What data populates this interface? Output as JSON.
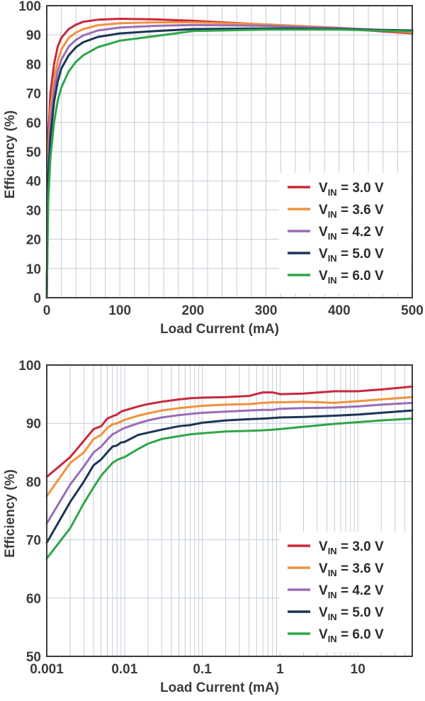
{
  "chart_data": [
    {
      "type": "line",
      "xlabel": "Load Current (mA)",
      "ylabel": "Efficiency (%)",
      "xscale": "linear",
      "xlim": [
        0,
        500
      ],
      "ylim": [
        0,
        100
      ],
      "xticks": [
        0,
        100,
        200,
        300,
        400,
        500
      ],
      "yticks": [
        0,
        10,
        20,
        30,
        40,
        50,
        60,
        70,
        80,
        90,
        100
      ],
      "grid": true,
      "legend": "bottom-right",
      "series": [
        {
          "name": "VIN = 3.0 V",
          "color": "#c8283c",
          "x": [
            0,
            2,
            5,
            10,
            15,
            20,
            30,
            40,
            50,
            70,
            100,
            150,
            200,
            300,
            400,
            500
          ],
          "y": [
            0,
            55,
            70,
            80,
            86,
            89,
            92,
            93.5,
            94.5,
            95.2,
            95.5,
            95.3,
            94.8,
            93.5,
            92.2,
            90.5
          ]
        },
        {
          "name": "VIN = 3.6 V",
          "color": "#f0923b",
          "x": [
            0,
            2,
            5,
            10,
            15,
            20,
            30,
            40,
            50,
            70,
            100,
            150,
            200,
            300,
            400,
            500
          ],
          "y": [
            0,
            50,
            64,
            75,
            81,
            85,
            89,
            90.8,
            92,
            93.3,
            94,
            94.3,
            94.3,
            93.6,
            92.4,
            90.8
          ]
        },
        {
          "name": "VIN = 4.2 V",
          "color": "#9a6cb5",
          "x": [
            0,
            2,
            5,
            10,
            15,
            20,
            30,
            40,
            50,
            70,
            100,
            150,
            200,
            300,
            400,
            500
          ],
          "y": [
            0,
            45,
            60,
            71,
            77.5,
            81.5,
            86,
            88.3,
            89.8,
            91.5,
            92.5,
            93.1,
            93.4,
            93.1,
            92.3,
            91.2
          ]
        },
        {
          "name": "VIN = 5.0 V",
          "color": "#1b3555",
          "x": [
            0,
            2,
            5,
            10,
            15,
            20,
            30,
            40,
            50,
            70,
            100,
            150,
            200,
            300,
            400,
            500
          ],
          "y": [
            0,
            40,
            55,
            67,
            74,
            78.5,
            83,
            85.8,
            87.5,
            89.3,
            90.5,
            91.3,
            92,
            92.2,
            92,
            91.5
          ]
        },
        {
          "name": "VIN = 6.0 V",
          "color": "#2ea648",
          "x": [
            0,
            2,
            5,
            10,
            15,
            20,
            30,
            40,
            50,
            70,
            100,
            150,
            200,
            300,
            400,
            500
          ],
          "y": [
            0,
            33,
            48,
            60,
            67.5,
            72,
            77.5,
            80.8,
            83,
            85.8,
            88,
            89.6,
            91.3,
            91.8,
            91.8,
            91.2
          ]
        }
      ]
    },
    {
      "type": "line",
      "xlabel": "Load Current (mA)",
      "ylabel": "Efficiency (%)",
      "xscale": "log",
      "xlim": [
        0.001,
        50
      ],
      "ylim": [
        50,
        100
      ],
      "xticks": [
        0.001,
        0.01,
        0.1,
        1,
        10
      ],
      "xticklabels": [
        "0.001",
        "0.01",
        "0.1",
        "1",
        "10"
      ],
      "yticks": [
        50,
        60,
        70,
        80,
        90,
        100
      ],
      "grid": true,
      "legend": "bottom-right",
      "series": [
        {
          "name": "VIN = 3.0 V",
          "color": "#c8283c",
          "x": [
            0.001,
            0.002,
            0.003,
            0.004,
            0.005,
            0.006,
            0.007,
            0.008,
            0.009,
            0.01,
            0.015,
            0.02,
            0.03,
            0.05,
            0.07,
            0.1,
            0.2,
            0.4,
            0.6,
            0.8,
            1,
            2,
            5,
            10,
            20,
            50
          ],
          "y": [
            80.8,
            84.2,
            87,
            89,
            89.5,
            90.8,
            91.2,
            91.5,
            92,
            92.2,
            92.9,
            93.3,
            93.7,
            94.1,
            94.3,
            94.4,
            94.5,
            94.7,
            95.3,
            95.3,
            95,
            95.1,
            95.5,
            95.5,
            95.8,
            96.3
          ]
        },
        {
          "name": "VIN = 3.6 V",
          "color": "#f0923b",
          "x": [
            0.001,
            0.002,
            0.003,
            0.004,
            0.005,
            0.006,
            0.007,
            0.008,
            0.009,
            0.01,
            0.015,
            0.02,
            0.03,
            0.05,
            0.07,
            0.1,
            0.2,
            0.4,
            0.6,
            0.8,
            1,
            2,
            5,
            10,
            20,
            50
          ],
          "y": [
            77.5,
            83.2,
            85,
            87.3,
            88,
            89.2,
            89.8,
            90,
            90.3,
            90.6,
            91.3,
            91.7,
            92.2,
            92.6,
            92.8,
            93,
            93.2,
            93.3,
            93.5,
            93.6,
            93.6,
            93.7,
            93.5,
            93.8,
            94.1,
            94.5
          ]
        },
        {
          "name": "VIN = 4.2 V",
          "color": "#9a6cb5",
          "x": [
            0.001,
            0.002,
            0.003,
            0.004,
            0.005,
            0.006,
            0.007,
            0.008,
            0.009,
            0.01,
            0.015,
            0.02,
            0.03,
            0.05,
            0.07,
            0.1,
            0.2,
            0.4,
            0.6,
            0.8,
            1,
            2,
            5,
            10,
            20,
            50
          ],
          "y": [
            72.8,
            79.5,
            82.6,
            85,
            86,
            87.2,
            88.1,
            88.5,
            88.9,
            89.2,
            90,
            90.5,
            91,
            91.4,
            91.6,
            91.8,
            92,
            92.2,
            92.3,
            92.3,
            92.5,
            92.6,
            92.7,
            92.9,
            93.2,
            93.5
          ]
        },
        {
          "name": "VIN = 5.0 V",
          "color": "#1b3555",
          "x": [
            0.001,
            0.002,
            0.003,
            0.004,
            0.005,
            0.006,
            0.007,
            0.008,
            0.009,
            0.01,
            0.015,
            0.02,
            0.03,
            0.05,
            0.07,
            0.1,
            0.2,
            0.4,
            0.6,
            0.8,
            1,
            2,
            5,
            10,
            20,
            50
          ],
          "y": [
            69.5,
            76.5,
            80,
            82.8,
            83.8,
            85,
            86,
            86.2,
            86.7,
            86.8,
            88,
            88.4,
            88.9,
            89.5,
            89.7,
            90.1,
            90.5,
            90.7,
            90.8,
            90.9,
            91,
            91.1,
            91.3,
            91.5,
            91.8,
            92.2
          ]
        },
        {
          "name": "VIN = 6.0 V",
          "color": "#2ea648",
          "x": [
            0.001,
            0.002,
            0.003,
            0.004,
            0.005,
            0.006,
            0.007,
            0.008,
            0.009,
            0.01,
            0.015,
            0.02,
            0.03,
            0.05,
            0.07,
            0.1,
            0.2,
            0.4,
            0.6,
            0.8,
            1,
            2,
            5,
            10,
            20,
            50
          ],
          "y": [
            66.8,
            72,
            76.3,
            79,
            81,
            82.2,
            83.2,
            83.7,
            84,
            84.2,
            85.6,
            86.5,
            87.3,
            87.8,
            88.1,
            88.3,
            88.6,
            88.7,
            88.8,
            88.9,
            89,
            89.4,
            89.9,
            90.2,
            90.5,
            90.8
          ]
        }
      ]
    }
  ]
}
